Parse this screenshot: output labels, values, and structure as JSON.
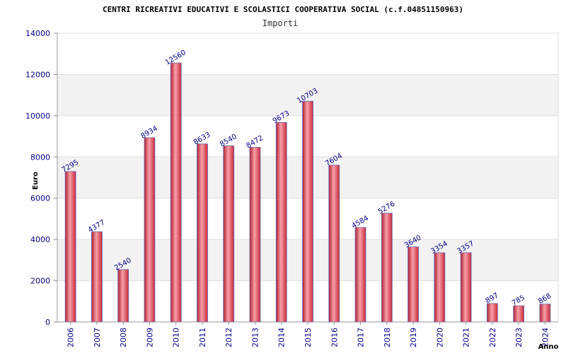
{
  "chart_data": {
    "type": "bar",
    "title": "CENTRI RICREATIVI EDUCATIVI E SCOLASTICI COOPERATIVA SOCIAL (c.f.04851150963)",
    "subtitle": "Importi",
    "ylabel": "Euro",
    "xlabel": "Anno",
    "ylim": [
      0,
      14000
    ],
    "yticks": [
      0,
      2000,
      4000,
      6000,
      8000,
      10000,
      12000,
      14000
    ],
    "grid": true,
    "categories": [
      "2006",
      "2007",
      "2008",
      "2009",
      "2010",
      "2011",
      "2012",
      "2013",
      "2014",
      "2015",
      "2016",
      "2017",
      "2018",
      "2019",
      "2020",
      "2021",
      "2022",
      "2023",
      "2024"
    ],
    "values": [
      7295,
      4377,
      2540,
      8934,
      12560,
      8633,
      8540,
      8472,
      9673,
      10703,
      7604,
      4584,
      5276,
      3640,
      3354,
      3357,
      897,
      785,
      868
    ],
    "bar_color": "#e8404a",
    "bar_highlight": "#f8a0a8",
    "bar_edge": "#6a6ab8",
    "band_color": "#f2f2f2",
    "label_color": "#00008b"
  }
}
